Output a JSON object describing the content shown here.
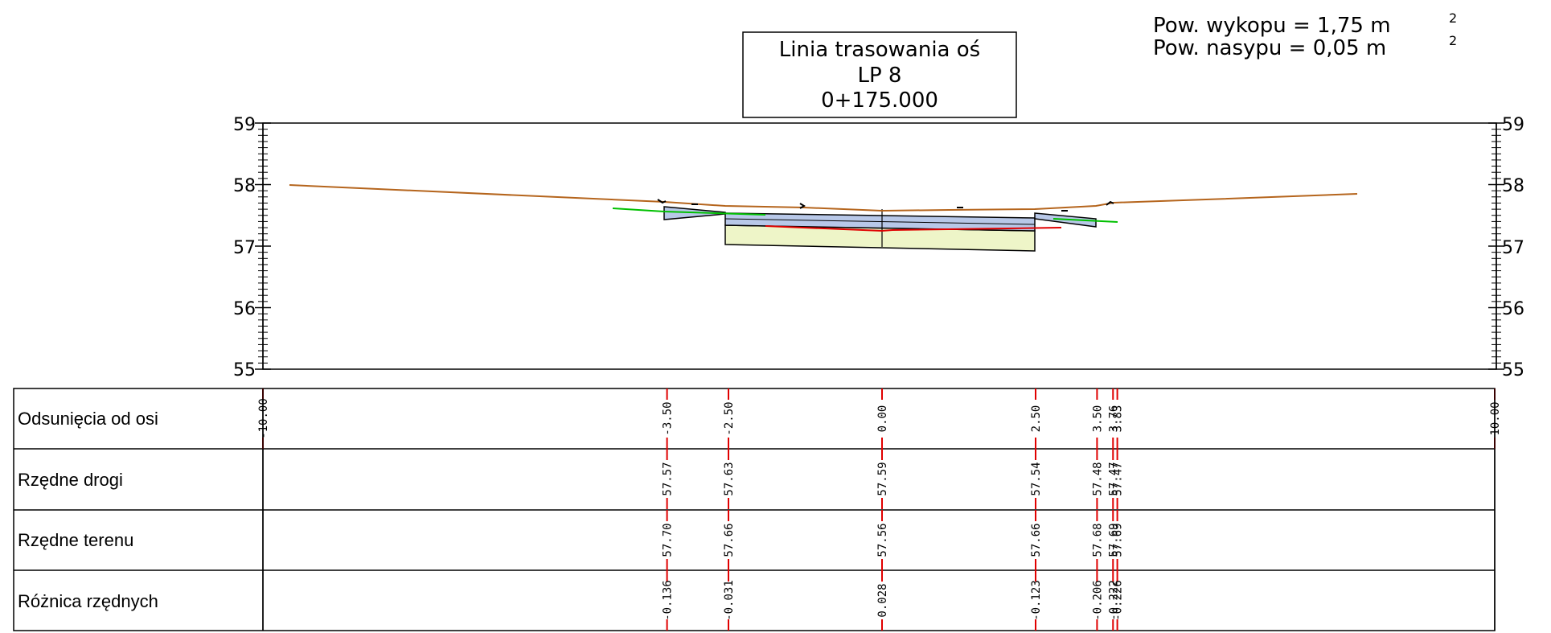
{
  "title_box": {
    "line1": "Linia trasowania oś",
    "line2": "LP 8",
    "line3": "0+175.000"
  },
  "areas": {
    "excavation": "Pow. wykopu = 1,75 m",
    "embankment": "Pow. nasypu = 0,05 m",
    "superscript": "2"
  },
  "elevation_axis": {
    "ticks": [
      "59",
      "58",
      "57",
      "56",
      "55"
    ],
    "range": [
      55,
      59
    ]
  },
  "table": {
    "rows": [
      {
        "label": "Odsunięcia od osi"
      },
      {
        "label": "Rzędne drogi"
      },
      {
        "label": "Rzędne terenu"
      },
      {
        "label": "Różnica rzędnych"
      }
    ],
    "columns": [
      {
        "offset": "-10.00",
        "road": "",
        "terrain": "",
        "diff": ""
      },
      {
        "offset": "-3.50",
        "road": "57.57",
        "terrain": "57.70",
        "diff": "-0.136"
      },
      {
        "offset": "-2.50",
        "road": "57.63",
        "terrain": "57.66",
        "diff": "-0.031"
      },
      {
        "offset": "0.00",
        "road": "57.59",
        "terrain": "57.56",
        "diff": "0.028"
      },
      {
        "offset": "2.50",
        "road": "57.54",
        "terrain": "57.66",
        "diff": "-0.123"
      },
      {
        "offset": "3.50",
        "road": "57.48",
        "terrain": "57.68",
        "diff": "-0.206"
      },
      {
        "offset": "3.76",
        "road": "57.47",
        "terrain": "57.69",
        "diff": "-0.222"
      },
      {
        "offset": "3.83",
        "road": "57.47",
        "terrain": "57.69",
        "diff": "-0.226"
      },
      {
        "offset": "10.00",
        "road": "",
        "terrain": "",
        "diff": ""
      }
    ]
  },
  "colors": {
    "terrain_line": "#b5651d",
    "guide_line": "#e00000",
    "green_line": "#00c000",
    "base_layer": "#eef5c8",
    "surface_layer": "#b8c8e8"
  }
}
